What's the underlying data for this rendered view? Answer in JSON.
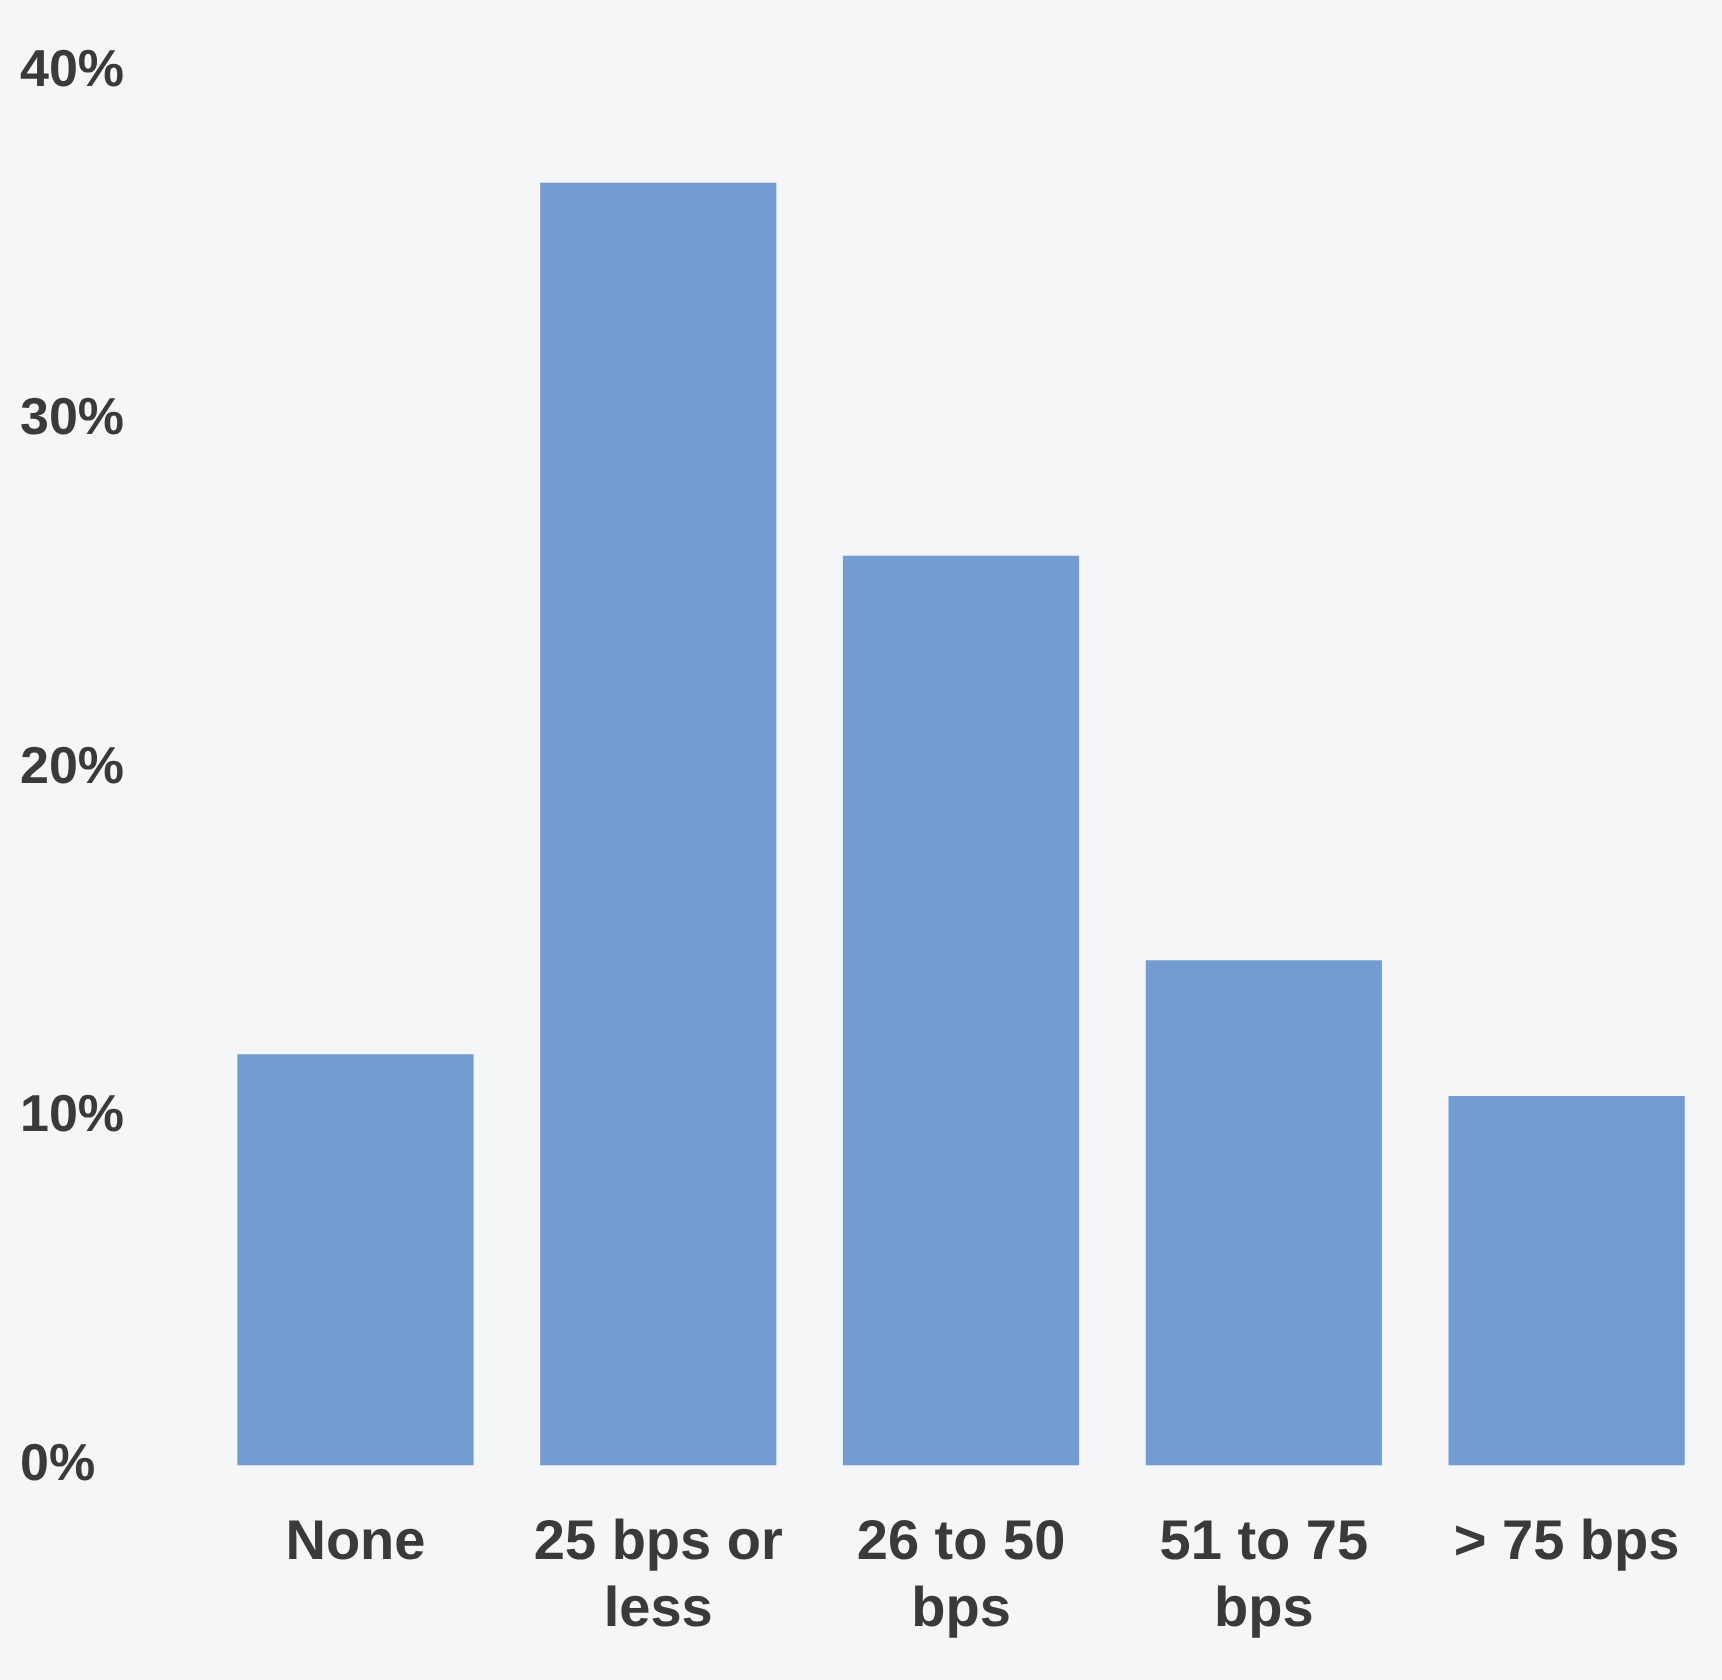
{
  "chart_data": {
    "type": "bar",
    "categories": [
      "None",
      "25 bps or less",
      "26 to 50 bps",
      "51 to 75 bps",
      "> 75 bps"
    ],
    "values": [
      11.8,
      36.8,
      26.1,
      14.5,
      10.6
    ],
    "color": "#729cd2",
    "ylim": [
      0,
      40
    ],
    "yticks": [
      {
        "value": 0,
        "label": "0%"
      },
      {
        "value": 10,
        "label": "10%"
      },
      {
        "value": 20,
        "label": "20%"
      },
      {
        "value": 30,
        "label": "30%"
      },
      {
        "value": 40,
        "label": "40%"
      }
    ],
    "grid": false,
    "legend": false
  }
}
